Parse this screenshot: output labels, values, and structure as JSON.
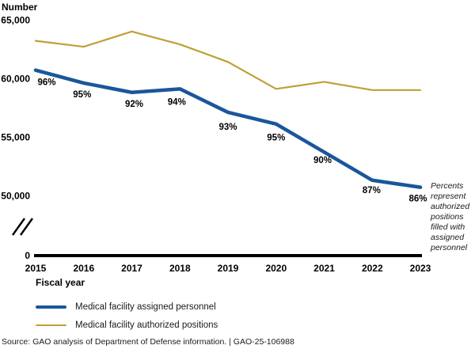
{
  "figure": {
    "y_axis_title": "Number",
    "x_axis_title": "Fiscal year",
    "annotation": "Percents represent authorized positions filled with assigned personnel",
    "source": "Source: GAO analysis of Department of Defense information. | GAO-25-106988"
  },
  "chart_data": {
    "type": "line",
    "title": "",
    "xlabel": "Fiscal year",
    "ylabel": "Number",
    "categories": [
      "2015",
      "2016",
      "2017",
      "2018",
      "2019",
      "2020",
      "2021",
      "2022",
      "2023"
    ],
    "series": [
      {
        "name": "Medical facility assigned personnel",
        "color": "#1a569b",
        "stroke_width": 4.5,
        "values": [
          60700,
          59600,
          58800,
          59100,
          57100,
          56100,
          53700,
          51300,
          50700
        ],
        "point_labels": [
          "96%",
          "95%",
          "92%",
          "94%",
          "93%",
          "95%",
          "90%",
          "87%",
          "86%"
        ]
      },
      {
        "name": "Medical facility authorized positions",
        "color": "#c0a035",
        "stroke_width": 2.2,
        "values": [
          63200,
          62700,
          64000,
          62900,
          61400,
          59100,
          59700,
          59000,
          59000
        ],
        "point_labels": []
      }
    ],
    "y_ticks": [
      {
        "value": 65000,
        "label": "65,000"
      },
      {
        "value": 60000,
        "label": "60,000"
      },
      {
        "value": 55000,
        "label": "55,000"
      },
      {
        "value": 50000,
        "label": "50,000"
      },
      {
        "value": 0,
        "label": "0"
      }
    ],
    "ylim_visible": [
      50000,
      65000
    ],
    "axis_break": true,
    "grid": false,
    "legend_position": "bottom-left",
    "annotation": "Percents represent authorized positions filled with assigned personnel",
    "point_labels_meaning": "Percents represent authorized positions filled with assigned personnel"
  }
}
